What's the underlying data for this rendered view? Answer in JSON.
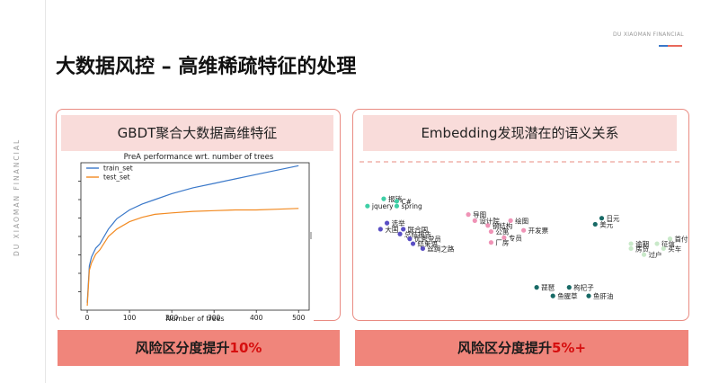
{
  "brand": {
    "side_text": "DU XIAOMAN FINANCIAL",
    "corner_text": "DU XIAOMAN FINANCIAL",
    "accent": "#e8685b"
  },
  "slide": {
    "title": "大数据风控 – 高维稀疏特征的处理"
  },
  "left_panel": {
    "heading": "GBDT聚合大数据高维特征",
    "result_prefix": "风险区分度提升",
    "result_highlight": "10%"
  },
  "right_panel": {
    "heading": "Embedding发现潜在的语义关系",
    "result_prefix": "风险区分度提升",
    "result_highlight": "5%+"
  },
  "chart_data": {
    "type": "line",
    "title": "PreA performance wrt. number of trees",
    "xlabel": "Number of trees",
    "ylabel": "",
    "xlim": [
      -15,
      525
    ],
    "ylim": [
      0,
      1
    ],
    "xticks": [
      0,
      100,
      200,
      300,
      400,
      500
    ],
    "legend_position": "top-left",
    "series": [
      {
        "name": "train_set",
        "color": "#3a78c9",
        "x": [
          0,
          5,
          10,
          20,
          30,
          50,
          70,
          100,
          130,
          160,
          200,
          250,
          300,
          350,
          400,
          450,
          500
        ],
        "y": [
          0.05,
          0.3,
          0.36,
          0.42,
          0.45,
          0.55,
          0.62,
          0.68,
          0.72,
          0.75,
          0.79,
          0.83,
          0.86,
          0.89,
          0.92,
          0.95,
          0.98
        ]
      },
      {
        "name": "test_set",
        "color": "#f28a21",
        "x": [
          0,
          5,
          10,
          20,
          30,
          50,
          70,
          100,
          130,
          160,
          200,
          250,
          300,
          350,
          400,
          450,
          500
        ],
        "y": [
          0.03,
          0.27,
          0.32,
          0.38,
          0.41,
          0.5,
          0.55,
          0.6,
          0.63,
          0.65,
          0.66,
          0.67,
          0.675,
          0.68,
          0.68,
          0.685,
          0.69
        ]
      }
    ]
  },
  "embedding_plot": {
    "points": [
      {
        "label": "报销",
        "group": "tech",
        "x": 8,
        "y": 94
      },
      {
        "label": "C#",
        "group": "tech",
        "x": 12,
        "y": 92
      },
      {
        "label": "jquery",
        "group": "tech",
        "x": 3,
        "y": 88
      },
      {
        "label": "spring",
        "group": "tech",
        "x": 12,
        "y": 88
      },
      {
        "label": "选举",
        "group": "politics",
        "x": 9,
        "y": 74
      },
      {
        "label": "大国",
        "group": "politics",
        "x": 7,
        "y": 69
      },
      {
        "label": "联合国",
        "group": "politics",
        "x": 14,
        "y": 69
      },
      {
        "label": "总结报告",
        "group": "politics",
        "x": 13,
        "y": 65
      },
      {
        "label": "优秀党员",
        "group": "politics",
        "x": 16,
        "y": 61
      },
      {
        "label": "结束语",
        "group": "politics",
        "x": 17,
        "y": 57
      },
      {
        "label": "丝绸之路",
        "group": "politics",
        "x": 20,
        "y": 53
      },
      {
        "label": "导图",
        "group": "design",
        "x": 34,
        "y": 81
      },
      {
        "label": "设计院",
        "group": "design",
        "x": 36,
        "y": 76
      },
      {
        "label": "绘图",
        "group": "design",
        "x": 47,
        "y": 76
      },
      {
        "label": "钢结构",
        "group": "design",
        "x": 40,
        "y": 72
      },
      {
        "label": "公寓",
        "group": "design",
        "x": 41,
        "y": 67
      },
      {
        "label": "开发票",
        "group": "design",
        "x": 51,
        "y": 68
      },
      {
        "label": "专员",
        "group": "design",
        "x": 45,
        "y": 62
      },
      {
        "label": "厂房",
        "group": "design",
        "x": 41,
        "y": 58
      },
      {
        "label": "日元",
        "group": "currency",
        "x": 75,
        "y": 78
      },
      {
        "label": "美元",
        "group": "currency",
        "x": 73,
        "y": 73
      },
      {
        "label": "首付",
        "group": "loan",
        "x": 96,
        "y": 61
      },
      {
        "label": "逾期",
        "group": "loan",
        "x": 84,
        "y": 57
      },
      {
        "label": "征信",
        "group": "loan",
        "x": 92,
        "y": 57
      },
      {
        "label": "房贷",
        "group": "loan",
        "x": 84,
        "y": 53
      },
      {
        "label": "买车",
        "group": "loan",
        "x": 94,
        "y": 53
      },
      {
        "label": "过户",
        "group": "loan",
        "x": 88,
        "y": 48
      },
      {
        "label": "琵琶",
        "group": "food",
        "x": 55,
        "y": 21
      },
      {
        "label": "枸杞子",
        "group": "food",
        "x": 65,
        "y": 21
      },
      {
        "label": "鱼腥草",
        "group": "food",
        "x": 60,
        "y": 14
      },
      {
        "label": "鱼肝油",
        "group": "food",
        "x": 71,
        "y": 14
      }
    ],
    "group_colors": {
      "tech": "#3fcfa6",
      "politics": "#5a4fc4",
      "design": "#ef93b6",
      "currency": "#186a66",
      "loan": "#c9e9c9",
      "food": "#186a66"
    }
  }
}
